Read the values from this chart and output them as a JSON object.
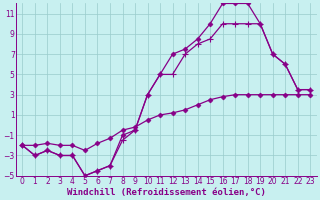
{
  "xlabel": "Windchill (Refroidissement éolien,°C)",
  "bg_color": "#c8f0f0",
  "line_color": "#880088",
  "grid_color": "#99cccc",
  "xlim": [
    -0.5,
    23.5
  ],
  "ylim": [
    -5,
    12
  ],
  "xticks": [
    0,
    1,
    2,
    3,
    4,
    5,
    6,
    7,
    8,
    9,
    10,
    11,
    12,
    13,
    14,
    15,
    16,
    17,
    18,
    19,
    20,
    21,
    22,
    23
  ],
  "yticks": [
    -5,
    -3,
    -1,
    1,
    3,
    5,
    7,
    9,
    11
  ],
  "line1_x": [
    0,
    1,
    2,
    3,
    4,
    5,
    6,
    7,
    8,
    9,
    10,
    11,
    12,
    13,
    14,
    15,
    16,
    17,
    18,
    19,
    20,
    21,
    22,
    23
  ],
  "line1_y": [
    -2,
    -3,
    -2.5,
    -3,
    -3,
    -5,
    -4.5,
    -4,
    -1,
    -0.5,
    3,
    5,
    7,
    7.5,
    8.5,
    10,
    12,
    12,
    12,
    10,
    7,
    6,
    3.5,
    3.5
  ],
  "line2_x": [
    0,
    1,
    2,
    3,
    4,
    5,
    6,
    7,
    8,
    9,
    10,
    11,
    12,
    13,
    14,
    15,
    16,
    17,
    18,
    19,
    20,
    21,
    22,
    23
  ],
  "line2_y": [
    -2,
    -3,
    -2.5,
    -3,
    -3,
    -5,
    -4.5,
    -4,
    -1.5,
    -0.5,
    3,
    5,
    5,
    7,
    8,
    8.5,
    10,
    10,
    10,
    10,
    7,
    6,
    3.5,
    3.5
  ],
  "line3_x": [
    0,
    1,
    2,
    3,
    4,
    5,
    6,
    7,
    8,
    9,
    10,
    11,
    12,
    13,
    14,
    15,
    16,
    17,
    18,
    19,
    20,
    21,
    22,
    23
  ],
  "line3_y": [
    -2,
    -2,
    -1.8,
    -2,
    -2,
    -2.5,
    -1.8,
    -1.3,
    -0.5,
    -0.2,
    0.5,
    1,
    1.2,
    1.5,
    2,
    2.5,
    2.8,
    3,
    3,
    3,
    3,
    3,
    3,
    3
  ],
  "tick_fontsize": 5.5,
  "xlabel_fontsize": 6.5
}
